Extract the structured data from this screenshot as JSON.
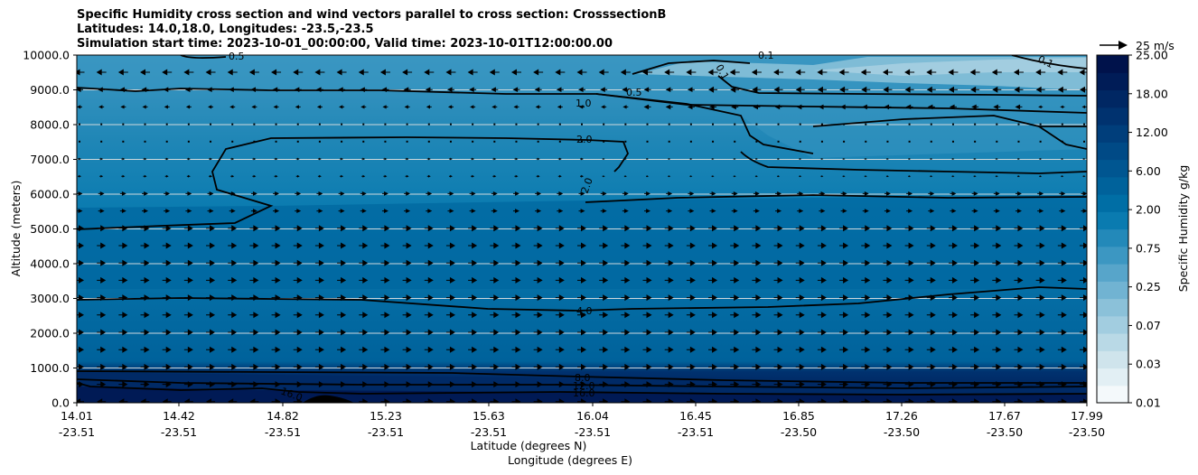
{
  "chart_data": {
    "type": "contour",
    "title_lines": [
      "Specific Humidity cross section and wind vectors parallel to cross section: CrosssectionB",
      "Latitudes: 14.0,18.0, Longitudes: -23.5,-23.5",
      "Simulation start time: 2023-10-01_00:00:00, Valid time: 2023-10-01T12:00:00.00"
    ],
    "ylabel": "Altitude (meters)",
    "xlabel_lines": [
      "Latitude (degrees N)",
      "Longitude (degrees E)"
    ],
    "ylim": [
      0,
      10000
    ],
    "y_ticks": [
      "0.0",
      "1000.0",
      "2000.0",
      "3000.0",
      "4000.0",
      "5000.0",
      "6000.0",
      "7000.0",
      "8000.0",
      "9000.0",
      "10000.0"
    ],
    "x_ticks": [
      {
        "lat": "14.01",
        "lon": "-23.51"
      },
      {
        "lat": "14.42",
        "lon": "-23.51"
      },
      {
        "lat": "14.82",
        "lon": "-23.51"
      },
      {
        "lat": "15.23",
        "lon": "-23.51"
      },
      {
        "lat": "15.63",
        "lon": "-23.51"
      },
      {
        "lat": "16.04",
        "lon": "-23.51"
      },
      {
        "lat": "16.45",
        "lon": "-23.51"
      },
      {
        "lat": "16.85",
        "lon": "-23.50"
      },
      {
        "lat": "17.26",
        "lon": "-23.50"
      },
      {
        "lat": "17.67",
        "lon": "-23.50"
      },
      {
        "lat": "17.99",
        "lon": "-23.50"
      }
    ],
    "grid": "horizontal",
    "colorbar": {
      "label": "Specific Humidity g/kg",
      "tick_labels": [
        "0.01",
        "0.03",
        "0.07",
        "0.25",
        "0.75",
        "2.00",
        "6.00",
        "12.00",
        "18.00",
        "25.00"
      ],
      "colors": [
        "#f4f9fb",
        "#e2eff4",
        "#cfe4ec",
        "#b9d9e6",
        "#a2cde0",
        "#8bc1d9",
        "#71b3d2",
        "#57a5ca",
        "#3c97c2",
        "#2389b9",
        "#0a7bb0",
        "#006ea5",
        "#00629b",
        "#005691",
        "#004a86",
        "#003e7b",
        "#00326f",
        "#002763",
        "#001c57",
        "#00124b"
      ]
    },
    "contour_labels": [
      "0.1",
      "0.1",
      "0.1",
      "0.5",
      "0.5",
      "1.0",
      "2.0",
      "2.0",
      "4.0",
      "8.0",
      "12.0",
      "16.0",
      "16.0"
    ],
    "vector_key": "25 m/s"
  }
}
